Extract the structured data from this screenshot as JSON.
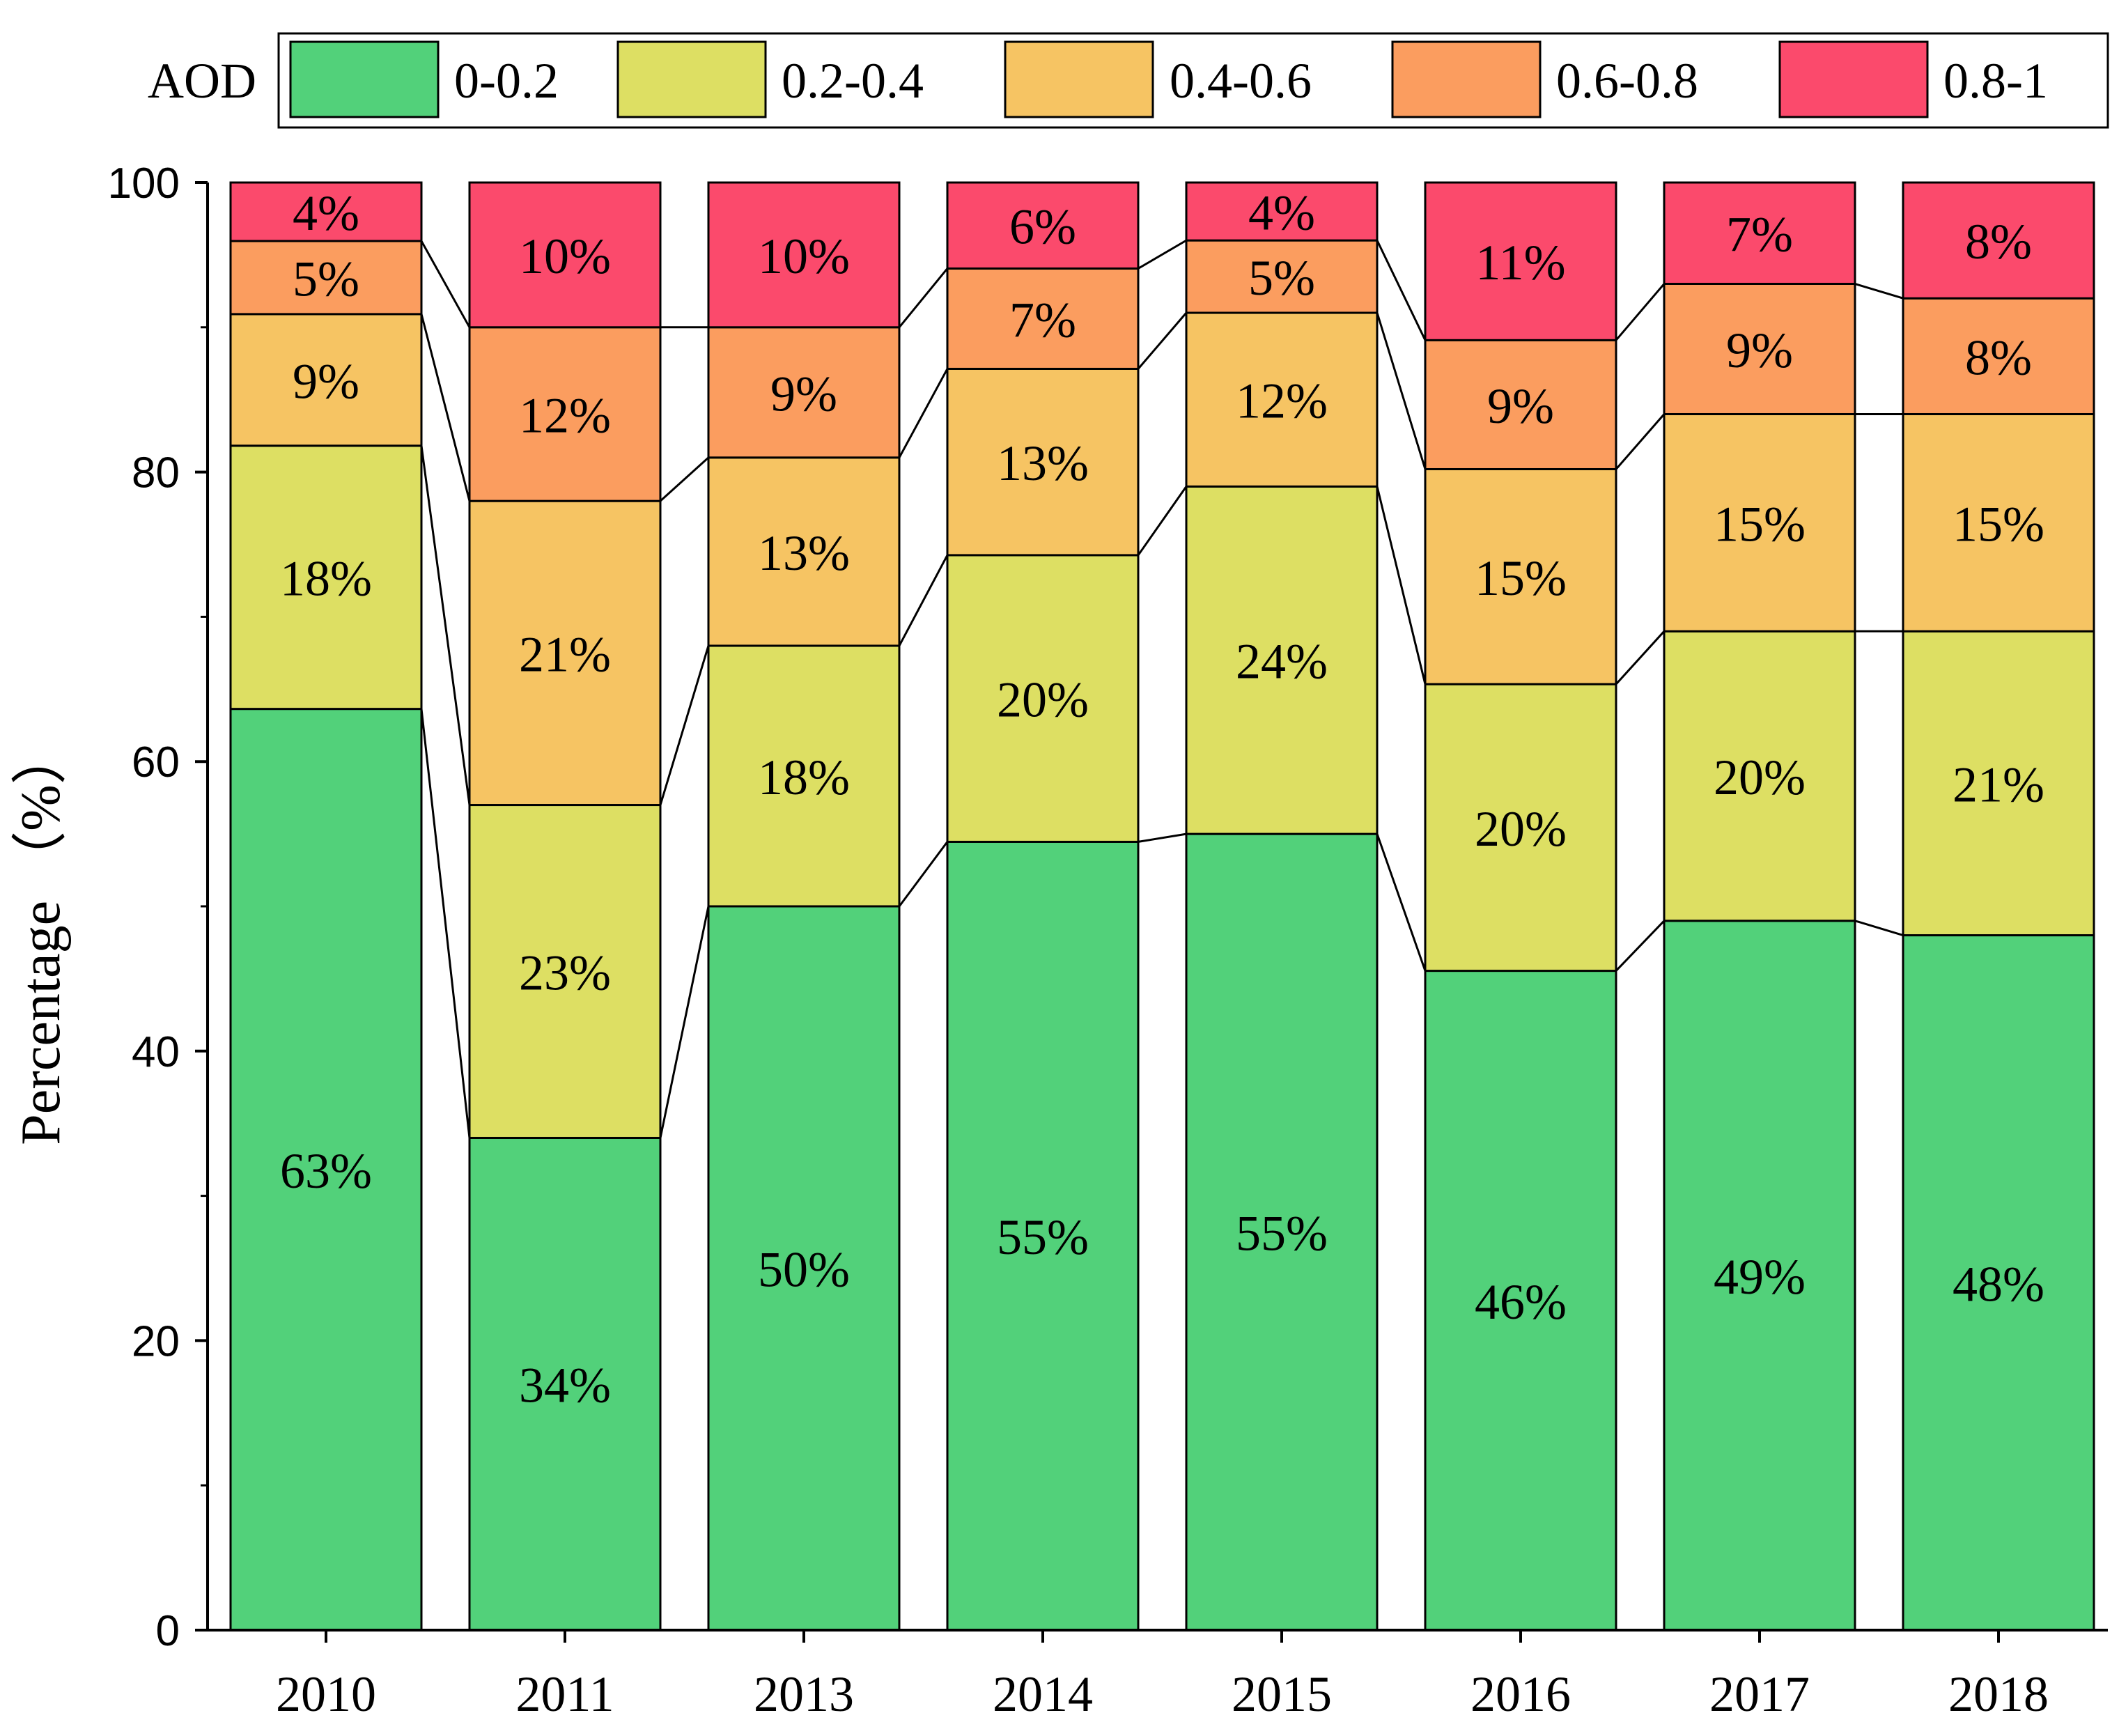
{
  "chart_data": {
    "type": "bar",
    "stacked": true,
    "title": "",
    "xlabel": "",
    "ylabel": "Percentage （%）",
    "ylim": [
      0,
      100
    ],
    "yticks": [
      "0",
      "20",
      "40",
      "60",
      "80",
      "100"
    ],
    "categories": [
      "2010",
      "2011",
      "2013",
      "2014",
      "2015",
      "2016",
      "2017",
      "2018"
    ],
    "legend": {
      "title": "AOD",
      "placement": "top"
    },
    "series": [
      {
        "name": "0-0.2",
        "color": "#52D17A",
        "values": [
          63,
          34,
          50,
          55,
          55,
          46,
          49,
          48
        ],
        "labels": [
          "63%",
          "34%",
          "50%",
          "55%",
          "55%",
          "46%",
          "49%",
          "48%"
        ]
      },
      {
        "name": "0.2-0.4",
        "color": "#DDDF63",
        "values": [
          18,
          23,
          18,
          20,
          24,
          20,
          20,
          21
        ],
        "labels": [
          "18%",
          "23%",
          "18%",
          "20%",
          "24%",
          "20%",
          "20%",
          "21%"
        ]
      },
      {
        "name": "0.4-0.6",
        "color": "#F6C463",
        "values": [
          9,
          21,
          13,
          13,
          12,
          15,
          15,
          15
        ],
        "labels": [
          "9%",
          "21%",
          "13%",
          "13%",
          "12%",
          "15%",
          "15%",
          "15%"
        ]
      },
      {
        "name": "0.6-0.8",
        "color": "#FB9D5F",
        "values": [
          5,
          12,
          9,
          7,
          5,
          9,
          9,
          8
        ],
        "labels": [
          "5%",
          "12%",
          "9%",
          "7%",
          "5%",
          "9%",
          "9%",
          "8%"
        ]
      },
      {
        "name": "0.8-1",
        "color": "#FB4A6C",
        "values": [
          4,
          10,
          10,
          6,
          4,
          11,
          7,
          8
        ],
        "labels": [
          "4%",
          "10%",
          "10%",
          "6%",
          "4%",
          "11%",
          "7%",
          "8%"
        ]
      }
    ]
  }
}
